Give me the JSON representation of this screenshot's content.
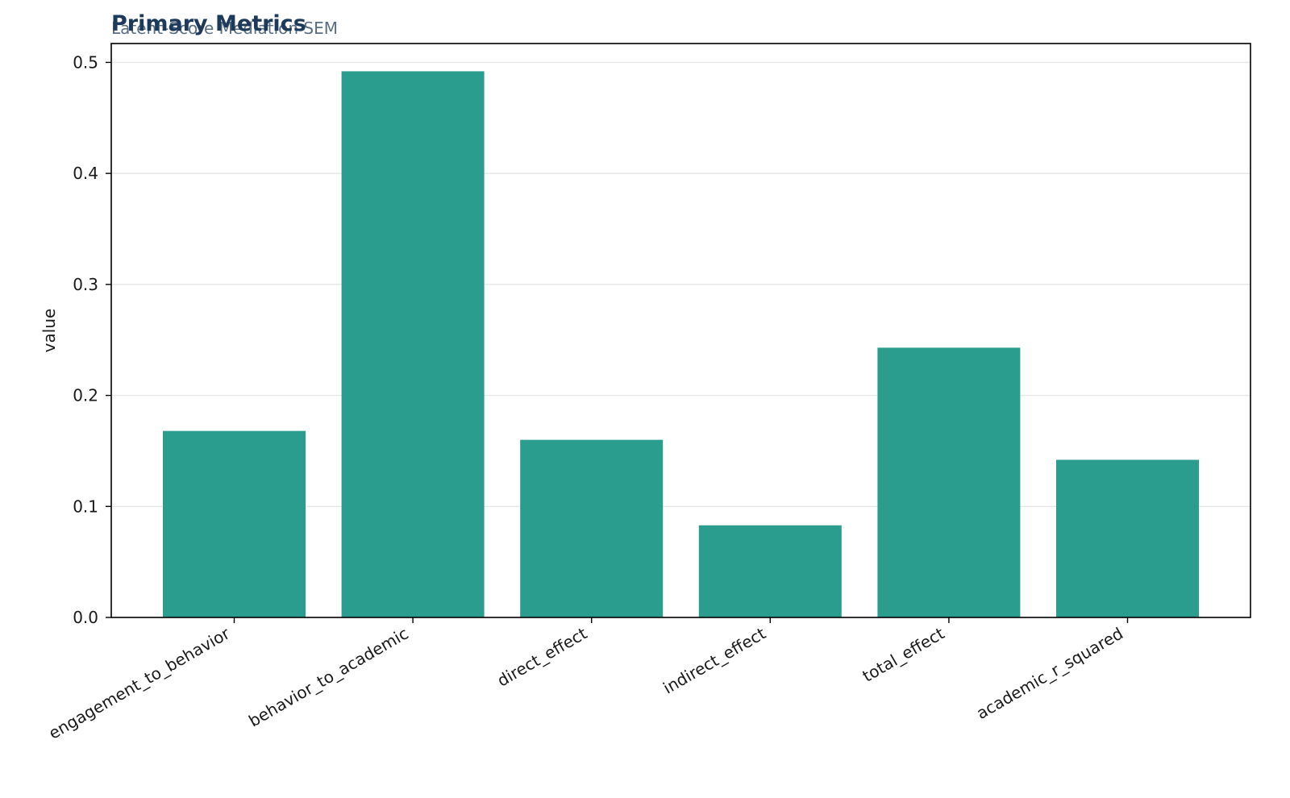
{
  "colors": {
    "bar": "#2a9d8f",
    "title": "#1d3a5a",
    "subtitle": "#5a6e82",
    "grid": "#e6e6e6",
    "axis": "#000000"
  },
  "chart_data": {
    "type": "bar",
    "title": "Primary Metrics",
    "subtitle": "Latent-Score Mediation SEM",
    "xlabel": "",
    "ylabel": "value",
    "categories": [
      "engagement_to_behavior",
      "behavior_to_academic",
      "direct_effect",
      "indirect_effect",
      "total_effect",
      "academic_r_squared"
    ],
    "values": [
      0.168,
      0.492,
      0.16,
      0.083,
      0.243,
      0.142
    ],
    "ylim": [
      0,
      0.517
    ],
    "yticks": [
      0.0,
      0.1,
      0.2,
      0.3,
      0.4,
      0.5
    ],
    "ytick_labels": [
      "0.0",
      "0.1",
      "0.2",
      "0.3",
      "0.4",
      "0.5"
    ],
    "grid": true,
    "legend": "none"
  }
}
